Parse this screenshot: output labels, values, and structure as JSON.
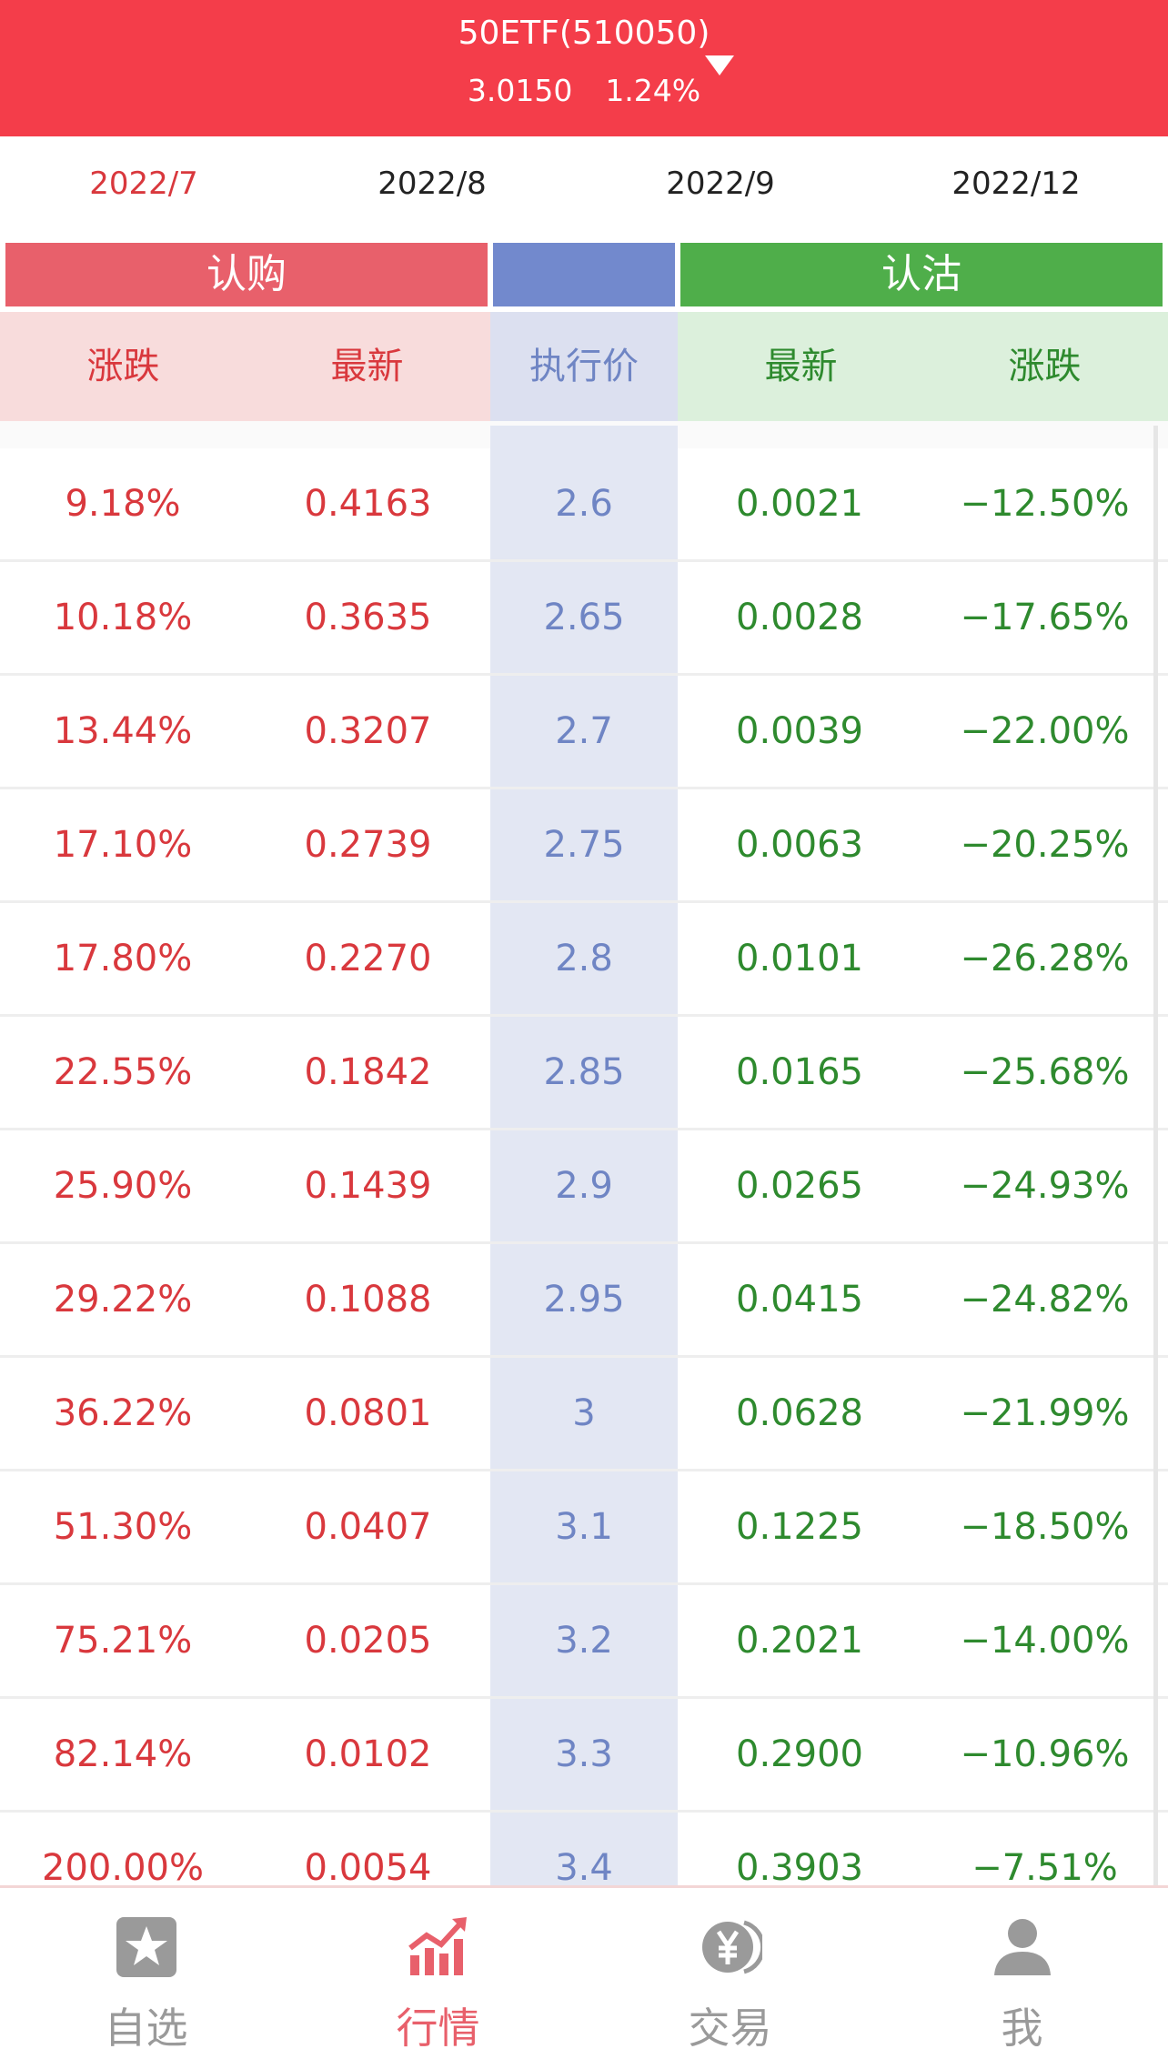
{
  "header": {
    "title": "50ETF(510050)",
    "price": "3.0150",
    "change": "1.24%"
  },
  "months": [
    "2022/7",
    "2022/8",
    "2022/9",
    "2022/12"
  ],
  "active_month": 0,
  "bands": {
    "call": "认购",
    "strike": "",
    "put": "认沽"
  },
  "subheader": {
    "call_change": "涨跌",
    "call_last": "最新",
    "strike": "执行价",
    "put_last": "最新",
    "put_change": "涨跌"
  },
  "rows": [
    {
      "call_change": "9.18%",
      "call_last": "0.4163",
      "strike": "2.6",
      "put_last": "0.0021",
      "put_change": "−12.50%"
    },
    {
      "call_change": "10.18%",
      "call_last": "0.3635",
      "strike": "2.65",
      "put_last": "0.0028",
      "put_change": "−17.65%"
    },
    {
      "call_change": "13.44%",
      "call_last": "0.3207",
      "strike": "2.7",
      "put_last": "0.0039",
      "put_change": "−22.00%"
    },
    {
      "call_change": "17.10%",
      "call_last": "0.2739",
      "strike": "2.75",
      "put_last": "0.0063",
      "put_change": "−20.25%"
    },
    {
      "call_change": "17.80%",
      "call_last": "0.2270",
      "strike": "2.8",
      "put_last": "0.0101",
      "put_change": "−26.28%"
    },
    {
      "call_change": "22.55%",
      "call_last": "0.1842",
      "strike": "2.85",
      "put_last": "0.0165",
      "put_change": "−25.68%"
    },
    {
      "call_change": "25.90%",
      "call_last": "0.1439",
      "strike": "2.9",
      "put_last": "0.0265",
      "put_change": "−24.93%"
    },
    {
      "call_change": "29.22%",
      "call_last": "0.1088",
      "strike": "2.95",
      "put_last": "0.0415",
      "put_change": "−24.82%"
    },
    {
      "call_change": "36.22%",
      "call_last": "0.0801",
      "strike": "3",
      "put_last": "0.0628",
      "put_change": "−21.99%"
    },
    {
      "call_change": "51.30%",
      "call_last": "0.0407",
      "strike": "3.1",
      "put_last": "0.1225",
      "put_change": "−18.50%"
    },
    {
      "call_change": "75.21%",
      "call_last": "0.0205",
      "strike": "3.2",
      "put_last": "0.2021",
      "put_change": "−14.00%"
    },
    {
      "call_change": "82.14%",
      "call_last": "0.0102",
      "strike": "3.3",
      "put_last": "0.2900",
      "put_change": "−10.96%"
    },
    {
      "call_change": "200.00%",
      "call_last": "0.0054",
      "strike": "3.4",
      "put_last": "0.3903",
      "put_change": "−7.51%"
    }
  ],
  "tabs": [
    {
      "label": "自选",
      "icon": "star-icon"
    },
    {
      "label": "行情",
      "icon": "chart-up-icon"
    },
    {
      "label": "交易",
      "icon": "yen-icon"
    },
    {
      "label": "我",
      "icon": "user-icon"
    }
  ],
  "active_tab": 1,
  "colors": {
    "header_bg": "#f43d4a",
    "call_red": "#d9383d",
    "put_green": "#2e8a2e",
    "strike_blue": "#6f85c4",
    "tab_active": "#e8606b",
    "tab_inactive": "#9a9a9a"
  }
}
